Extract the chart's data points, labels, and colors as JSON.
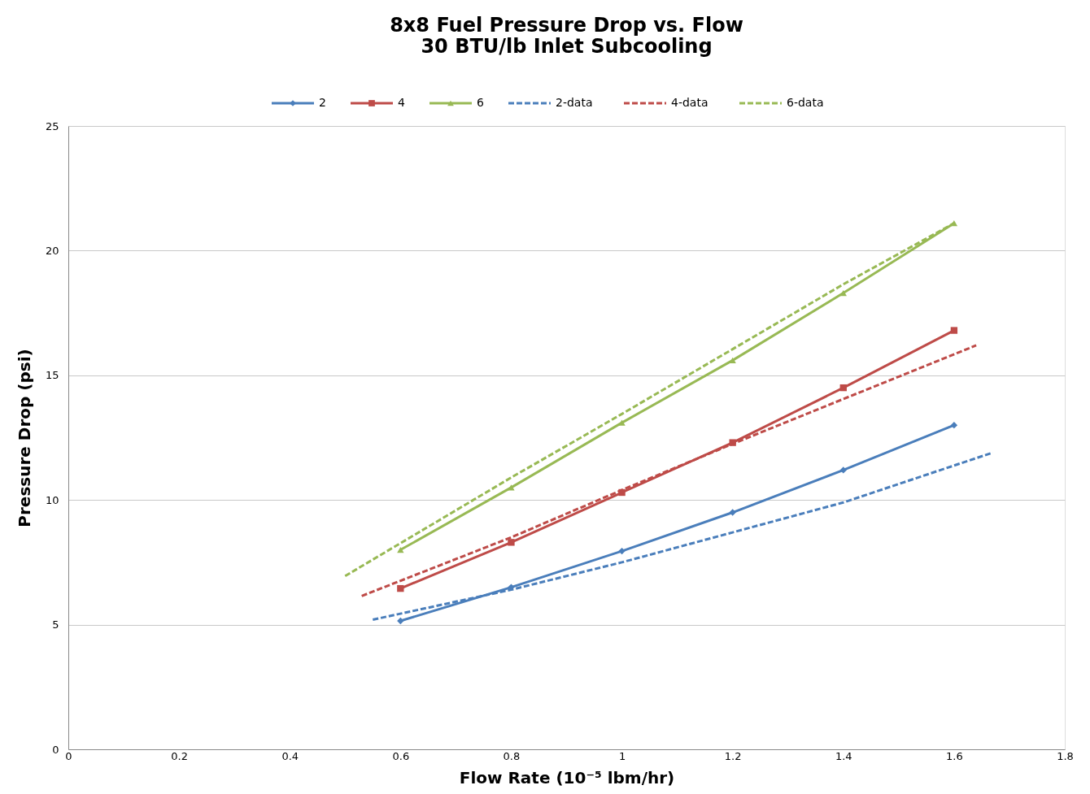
{
  "chart_data": {
    "type": "line",
    "title": [
      "8x8 Fuel Pressure Drop vs. Flow",
      "30 BTU/lb Inlet Subcooling"
    ],
    "xlabel": "Flow Rate (10⁻⁵ lbm/hr)",
    "ylabel": "Pressure Drop (psi)",
    "xlim": [
      0,
      1.8
    ],
    "xticks": [
      0,
      0.2,
      0.4,
      0.6,
      0.8,
      1,
      1.2,
      1.4,
      1.6,
      1.8
    ],
    "ylim": [
      0,
      25
    ],
    "yticks": [
      0,
      5,
      10,
      15,
      20,
      25
    ],
    "grid": "y",
    "legend": "top",
    "series": [
      {
        "name": "2",
        "color": "#4a7ebb",
        "marker": "diamond",
        "line_style": "solid",
        "x": [
          0.6,
          0.8,
          1.0,
          1.2,
          1.4,
          1.6
        ],
        "values": [
          5.15,
          6.5,
          7.95,
          9.5,
          11.2,
          13.0
        ]
      },
      {
        "name": "4",
        "color": "#be4b48",
        "marker": "square",
        "line_style": "solid",
        "x": [
          0.6,
          0.8,
          1.0,
          1.2,
          1.4,
          1.6
        ],
        "values": [
          6.45,
          8.3,
          10.3,
          12.3,
          14.5,
          16.8
        ]
      },
      {
        "name": "6",
        "color": "#98b954",
        "marker": "triangle",
        "line_style": "solid",
        "x": [
          0.6,
          0.8,
          1.0,
          1.2,
          1.4,
          1.6
        ],
        "values": [
          8.0,
          10.5,
          13.1,
          15.6,
          18.3,
          21.1
        ]
      },
      {
        "name": "2-data",
        "color": "#4a7ebb",
        "marker": "none",
        "line_style": "dashed",
        "x": [
          0.55,
          0.8,
          1.0,
          1.2,
          1.4,
          1.67
        ],
        "values": [
          5.2,
          6.4,
          7.5,
          8.7,
          9.9,
          11.9
        ]
      },
      {
        "name": "4-data",
        "color": "#be4b48",
        "marker": "none",
        "line_style": "dashed",
        "x": [
          0.53,
          0.8,
          1.0,
          1.2,
          1.4,
          1.64
        ],
        "values": [
          6.15,
          8.5,
          10.4,
          12.25,
          14.05,
          16.2
        ]
      },
      {
        "name": "6-data",
        "color": "#98b954",
        "marker": "none",
        "line_style": "dashed",
        "x": [
          0.5,
          0.8,
          1.0,
          1.2,
          1.4,
          1.6
        ],
        "values": [
          6.95,
          10.9,
          13.45,
          16.05,
          18.65,
          21.1
        ]
      }
    ]
  }
}
